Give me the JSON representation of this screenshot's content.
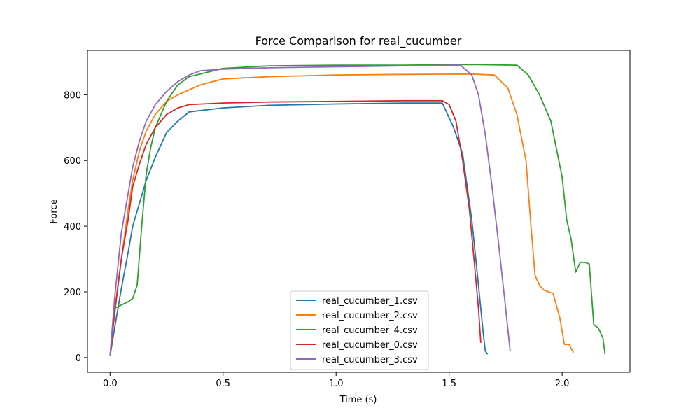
{
  "chart_data": {
    "type": "line",
    "title": "Force Comparison for real_cucumber",
    "xlabel": "Time (s)",
    "ylabel": "Force",
    "xlim": [
      -0.1,
      2.3
    ],
    "ylim": [
      -45,
      935
    ],
    "xticks": [
      0.0,
      0.5,
      1.0,
      1.5,
      2.0
    ],
    "xtick_labels": [
      "0.0",
      "0.5",
      "1.0",
      "1.5",
      "2.0"
    ],
    "yticks": [
      0,
      200,
      400,
      600,
      800
    ],
    "ytick_labels": [
      "0",
      "200",
      "400",
      "600",
      "800"
    ],
    "grid": false,
    "legend_position": "lower-center",
    "series": [
      {
        "name": "real_cucumber_1.csv",
        "color": "#1f77b4",
        "x": [
          0.0,
          0.02,
          0.05,
          0.08,
          0.1,
          0.13,
          0.16,
          0.2,
          0.25,
          0.3,
          0.35,
          0.5,
          0.7,
          1.0,
          1.3,
          1.47,
          1.52,
          1.56,
          1.6,
          1.63,
          1.65,
          1.66,
          1.67
        ],
        "y": [
          5,
          90,
          210,
          320,
          400,
          470,
          540,
          610,
          685,
          720,
          748,
          760,
          768,
          772,
          775,
          775,
          700,
          620,
          420,
          220,
          80,
          20,
          10
        ]
      },
      {
        "name": "real_cucumber_2.csv",
        "color": "#ff7f0e",
        "x": [
          0.0,
          0.02,
          0.05,
          0.08,
          0.1,
          0.13,
          0.16,
          0.2,
          0.25,
          0.3,
          0.4,
          0.5,
          0.7,
          1.0,
          1.3,
          1.6,
          1.7,
          1.76,
          1.8,
          1.84,
          1.86,
          1.88,
          1.9,
          1.92,
          1.96,
          1.99,
          2.01,
          2.03,
          2.05
        ],
        "y": [
          5,
          130,
          300,
          450,
          540,
          630,
          690,
          740,
          780,
          800,
          830,
          848,
          855,
          860,
          862,
          863,
          860,
          820,
          740,
          600,
          420,
          250,
          220,
          205,
          195,
          120,
          40,
          40,
          15
        ]
      },
      {
        "name": "real_cucumber_4.csv",
        "color": "#2ca02c",
        "x": [
          0.0,
          0.02,
          0.05,
          0.08,
          0.1,
          0.12,
          0.14,
          0.16,
          0.18,
          0.2,
          0.25,
          0.3,
          0.35,
          0.5,
          0.7,
          1.0,
          1.3,
          1.6,
          1.8,
          1.85,
          1.9,
          1.95,
          2.0,
          2.02,
          2.04,
          2.06,
          2.08,
          2.1,
          2.12,
          2.14,
          2.16,
          2.18,
          2.19
        ],
        "y": [
          5,
          150,
          160,
          170,
          180,
          220,
          400,
          560,
          640,
          700,
          780,
          830,
          855,
          880,
          888,
          890,
          890,
          892,
          890,
          860,
          800,
          720,
          550,
          420,
          360,
          260,
          290,
          290,
          285,
          100,
          90,
          60,
          10
        ]
      },
      {
        "name": "real_cucumber_0.csv",
        "color": "#d62728",
        "x": [
          0.0,
          0.02,
          0.05,
          0.08,
          0.1,
          0.13,
          0.16,
          0.2,
          0.25,
          0.3,
          0.35,
          0.5,
          0.7,
          1.0,
          1.3,
          1.47,
          1.5,
          1.53,
          1.56,
          1.59,
          1.61,
          1.63,
          1.64
        ],
        "y": [
          5,
          140,
          300,
          420,
          520,
          590,
          650,
          700,
          740,
          760,
          770,
          775,
          778,
          780,
          782,
          782,
          770,
          720,
          600,
          450,
          300,
          150,
          45
        ]
      },
      {
        "name": "real_cucumber_3.csv",
        "color": "#9467bd",
        "x": [
          0.0,
          0.02,
          0.05,
          0.08,
          0.1,
          0.13,
          0.16,
          0.2,
          0.25,
          0.3,
          0.35,
          0.4,
          0.5,
          0.7,
          1.0,
          1.3,
          1.55,
          1.6,
          1.63,
          1.66,
          1.69,
          1.72,
          1.75,
          1.77
        ],
        "y": [
          5,
          180,
          380,
          500,
          580,
          660,
          720,
          770,
          810,
          840,
          860,
          873,
          878,
          882,
          885,
          888,
          890,
          860,
          800,
          680,
          520,
          340,
          150,
          20
        ]
      }
    ]
  }
}
